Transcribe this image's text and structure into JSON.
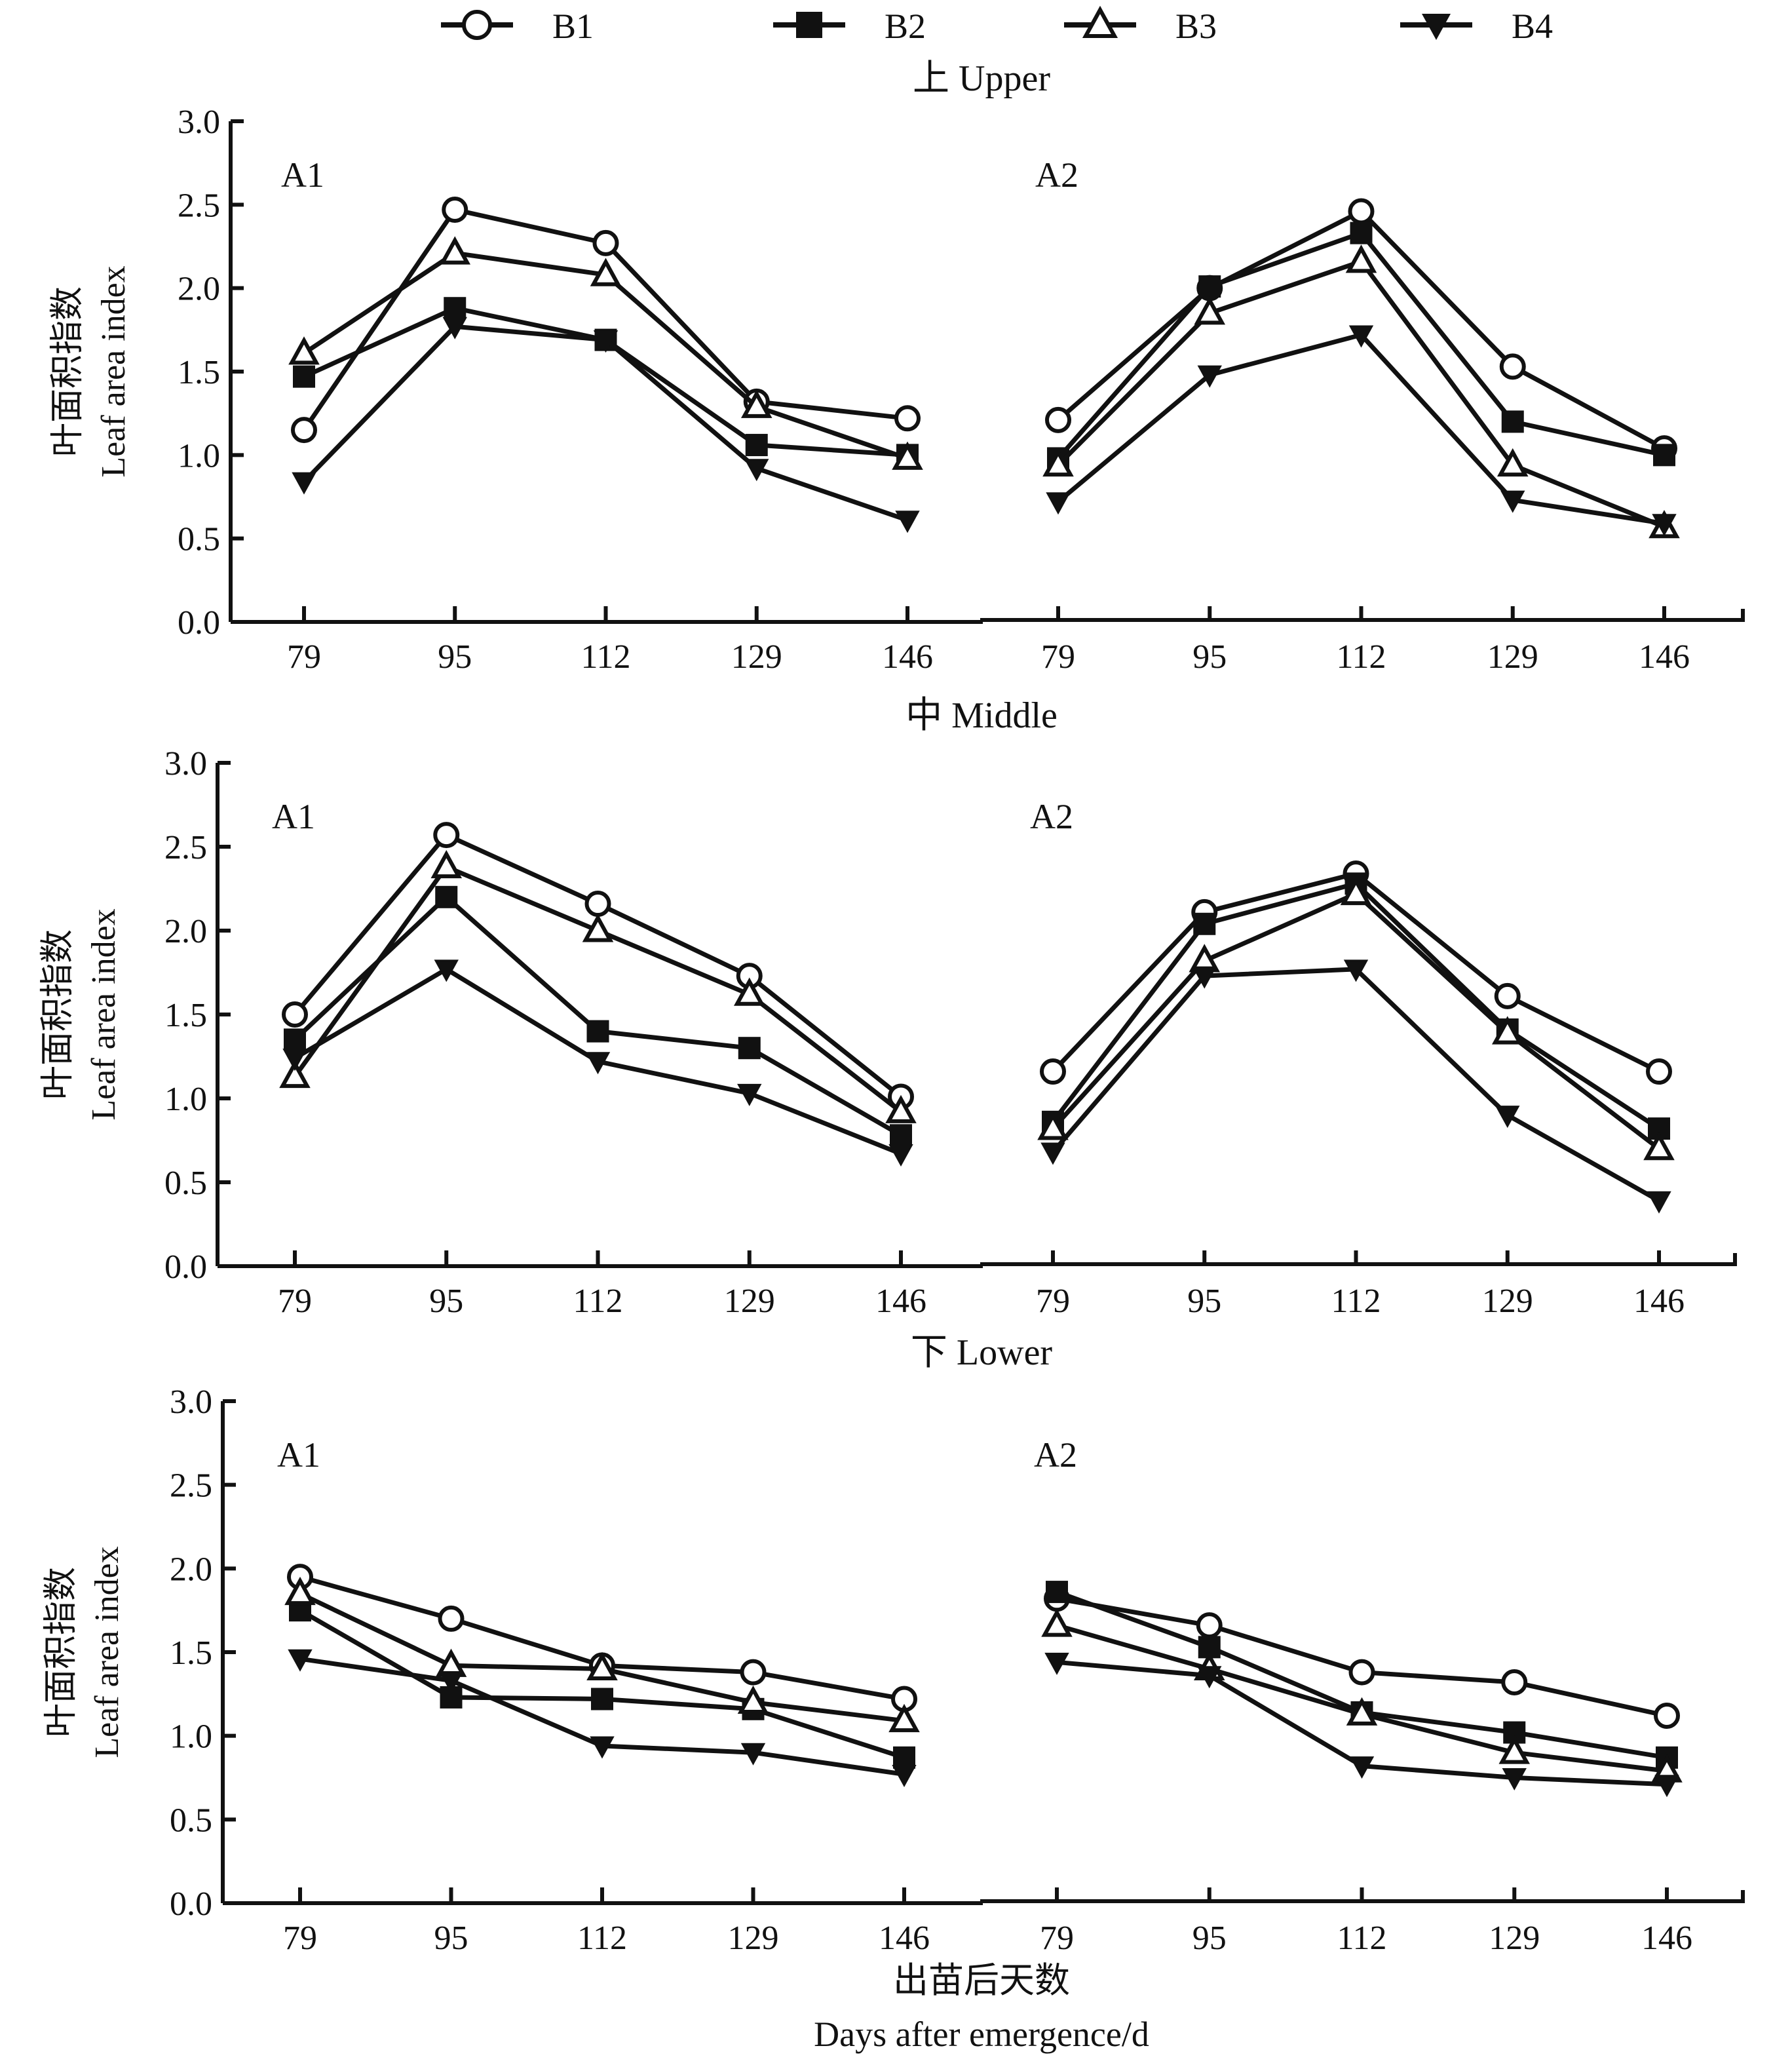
{
  "legend": [
    {
      "name": "B1",
      "marker": "open-circle"
    },
    {
      "name": "B2",
      "marker": "filled-square"
    },
    {
      "name": "B3",
      "marker": "open-triangle-up"
    },
    {
      "name": "B4",
      "marker": "filled-triangle-down"
    }
  ],
  "ylabel_cn": "叶面积指数",
  "ylabel_en": "Leaf area index",
  "xlabel_cn": "出苗后天数",
  "xlabel_en": "Days after emergence/d",
  "chart_data": [
    {
      "type": "line",
      "title": "上 Upper",
      "ylim": [
        0,
        3.0
      ],
      "yticks": [
        "0.0",
        "0.5",
        "1.0",
        "1.5",
        "2.0",
        "2.5",
        "3.0"
      ],
      "categories": [
        "79",
        "95",
        "112",
        "129",
        "146"
      ],
      "panels": [
        {
          "label": "A1",
          "series": [
            {
              "name": "B1",
              "values": [
                1.15,
                2.47,
                2.27,
                1.32,
                1.22
              ]
            },
            {
              "name": "B2",
              "values": [
                1.47,
                1.88,
                1.69,
                1.06,
                1.0
              ]
            },
            {
              "name": "B3",
              "values": [
                1.61,
                2.21,
                2.08,
                1.29,
                0.98
              ]
            },
            {
              "name": "B4",
              "values": [
                0.84,
                1.77,
                1.69,
                0.92,
                0.61
              ]
            }
          ]
        },
        {
          "label": "A2",
          "series": [
            {
              "name": "B1",
              "values": [
                1.21,
                2.0,
                2.46,
                1.53,
                1.04
              ]
            },
            {
              "name": "B2",
              "values": [
                0.98,
                2.01,
                2.33,
                1.2,
                1.0
              ]
            },
            {
              "name": "B3",
              "values": [
                0.94,
                1.85,
                2.16,
                0.94,
                0.57
              ]
            },
            {
              "name": "B4",
              "values": [
                0.72,
                1.48,
                1.72,
                0.73,
                0.59
              ]
            }
          ]
        }
      ]
    },
    {
      "type": "line",
      "title": "中 Middle",
      "ylim": [
        0,
        3.0
      ],
      "yticks": [
        "0.0",
        "0.5",
        "1.0",
        "1.5",
        "2.0",
        "2.5",
        "3.0"
      ],
      "categories": [
        "79",
        "95",
        "112",
        "129",
        "146"
      ],
      "panels": [
        {
          "label": "A1",
          "series": [
            {
              "name": "B1",
              "values": [
                1.5,
                2.57,
                2.16,
                1.73,
                1.01
              ]
            },
            {
              "name": "B2",
              "values": [
                1.35,
                2.2,
                1.4,
                1.3,
                0.78
              ]
            },
            {
              "name": "B3",
              "values": [
                1.13,
                2.38,
                2.0,
                1.62,
                0.92
              ]
            },
            {
              "name": "B4",
              "values": [
                1.24,
                1.77,
                1.22,
                1.03,
                0.67
              ]
            }
          ]
        },
        {
          "label": "A2",
          "series": [
            {
              "name": "B1",
              "values": [
                1.16,
                2.11,
                2.34,
                1.61,
                1.16
              ]
            },
            {
              "name": "B2",
              "values": [
                0.86,
                2.04,
                2.28,
                1.41,
                0.82
              ]
            },
            {
              "name": "B3",
              "values": [
                0.82,
                1.82,
                2.22,
                1.39,
                0.7
              ]
            },
            {
              "name": "B4",
              "values": [
                0.68,
                1.73,
                1.77,
                0.9,
                0.39
              ]
            }
          ]
        }
      ]
    },
    {
      "type": "line",
      "title": "下 Lower",
      "ylim": [
        0,
        3.0
      ],
      "yticks": [
        "0.0",
        "0.5",
        "1.0",
        "1.5",
        "2.0",
        "2.5",
        "3.0"
      ],
      "categories": [
        "79",
        "95",
        "112",
        "129",
        "146"
      ],
      "panels": [
        {
          "label": "A1",
          "series": [
            {
              "name": "B1",
              "values": [
                1.95,
                1.7,
                1.42,
                1.38,
                1.22
              ]
            },
            {
              "name": "B2",
              "values": [
                1.75,
                1.23,
                1.22,
                1.16,
                0.87
              ]
            },
            {
              "name": "B3",
              "values": [
                1.85,
                1.42,
                1.4,
                1.2,
                1.09
              ]
            },
            {
              "name": "B4",
              "values": [
                1.46,
                1.33,
                0.94,
                0.9,
                0.77
              ]
            }
          ]
        },
        {
          "label": "A2",
          "series": [
            {
              "name": "B1",
              "values": [
                1.82,
                1.66,
                1.38,
                1.32,
                1.12
              ]
            },
            {
              "name": "B2",
              "values": [
                1.86,
                1.53,
                1.14,
                1.02,
                0.87
              ]
            },
            {
              "name": "B3",
              "values": [
                1.66,
                1.4,
                1.13,
                0.9,
                0.79
              ]
            },
            {
              "name": "B4",
              "values": [
                1.44,
                1.36,
                0.82,
                0.75,
                0.71
              ]
            }
          ]
        }
      ]
    }
  ]
}
